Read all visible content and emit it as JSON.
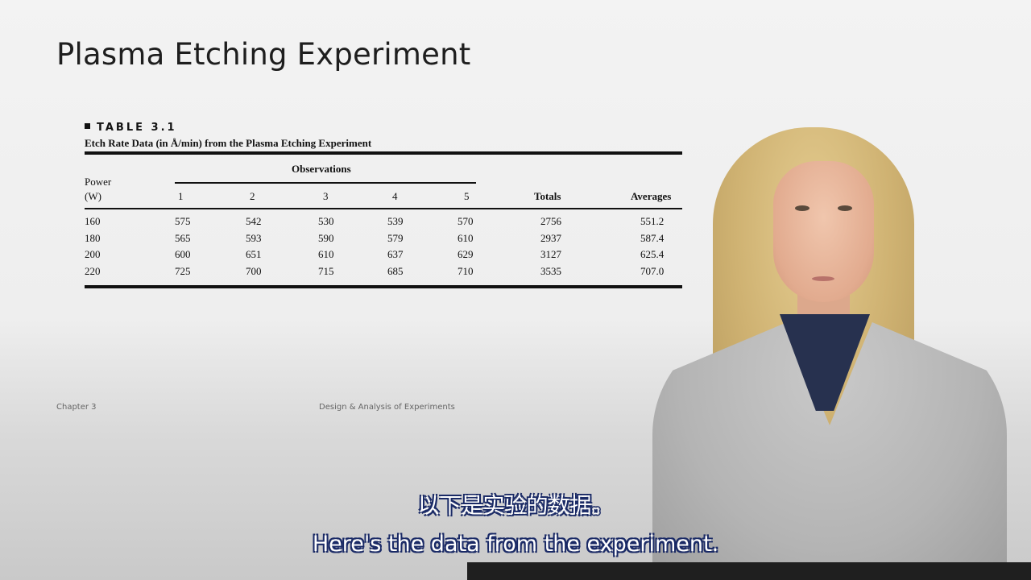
{
  "slide": {
    "title": "Plasma Etching Experiment",
    "footer_left": "Chapter 3",
    "footer_center": "Design & Analysis of Experiments"
  },
  "table": {
    "label": "TABLE 3.1",
    "caption": "Etch Rate Data (in Å/min) from the Plasma Etching Experiment",
    "group_header": "Observations",
    "headers": {
      "power_line1": "Power",
      "power_line2": "(W)",
      "obs": [
        "1",
        "2",
        "3",
        "4",
        "5"
      ],
      "totals": "Totals",
      "averages": "Averages"
    },
    "rows": [
      {
        "power": "160",
        "obs": [
          "575",
          "542",
          "530",
          "539",
          "570"
        ],
        "total": "2756",
        "average": "551.2"
      },
      {
        "power": "180",
        "obs": [
          "565",
          "593",
          "590",
          "579",
          "610"
        ],
        "total": "2937",
        "average": "587.4"
      },
      {
        "power": "200",
        "obs": [
          "600",
          "651",
          "610",
          "637",
          "629"
        ],
        "total": "3127",
        "average": "625.4"
      },
      {
        "power": "220",
        "obs": [
          "725",
          "700",
          "715",
          "685",
          "710"
        ],
        "total": "3535",
        "average": "707.0"
      }
    ]
  },
  "subtitles": {
    "zh": "以下是实验的数据。",
    "en": "Here's the data from the experiment."
  }
}
